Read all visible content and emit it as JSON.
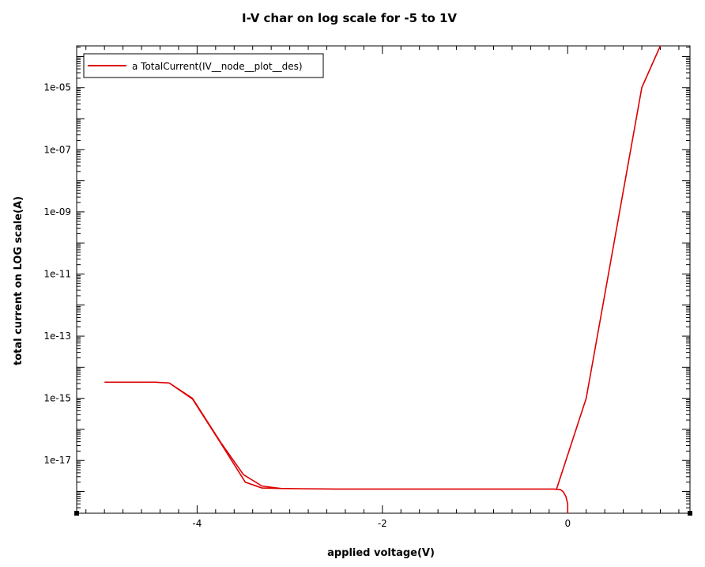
{
  "chart_data": {
    "type": "line",
    "title": "I-V char on log scale for -5 to 1V",
    "xlabel": "applied voltage(V)",
    "ylabel": "total current on LOG scale(A)",
    "xlim": [
      -5.3,
      1.32
    ],
    "ylim": [
      2e-19,
      0.00022
    ],
    "yscale": "log",
    "x_ticks": [
      -4,
      -2,
      0
    ],
    "x_tick_labels": [
      "-4",
      "-2",
      "0"
    ],
    "y_ticks": [
      1e-17,
      1e-15,
      1e-13,
      1e-11,
      1e-09,
      1e-07,
      1e-05
    ],
    "y_tick_labels": [
      "1e-17",
      "1e-15",
      "1e-13",
      "1e-11",
      "1e-09",
      "1e-07",
      "1e-05"
    ],
    "grid": false,
    "legend_position": "top-left",
    "colors": {
      "series": "#dd0000"
    },
    "series": [
      {
        "name": "a TotalCurrent(IV__node__plot__des)",
        "x": [
          -5.0,
          -4.45,
          -4.3,
          -4.05,
          -3.75,
          -3.5,
          -3.3,
          -3.1,
          -2.5,
          -1.0,
          -0.15,
          -0.08,
          -0.05,
          -0.02,
          0.0,
          0.0
        ],
        "y": [
          3.3e-15,
          3.3e-15,
          3.1e-15,
          1e-15,
          4e-17,
          3.5e-18,
          1.5e-18,
          1.25e-18,
          1.2e-18,
          1.2e-18,
          1.2e-18,
          1.15e-18,
          1e-18,
          7e-19,
          4e-19,
          2e-19
        ]
      },
      {
        "name": "",
        "x": [
          -0.12,
          0.2,
          0.8,
          1.0
        ],
        "y": [
          1.2e-18,
          1e-15,
          1e-05,
          0.00022
        ]
      },
      {
        "name": "",
        "x": [
          -4.3,
          -4.05,
          -3.75,
          -3.48,
          -3.3,
          -3.1
        ],
        "y": [
          3.1e-15,
          9.5e-16,
          3.8e-17,
          2e-18,
          1.3e-18,
          1.25e-18
        ]
      }
    ]
  }
}
